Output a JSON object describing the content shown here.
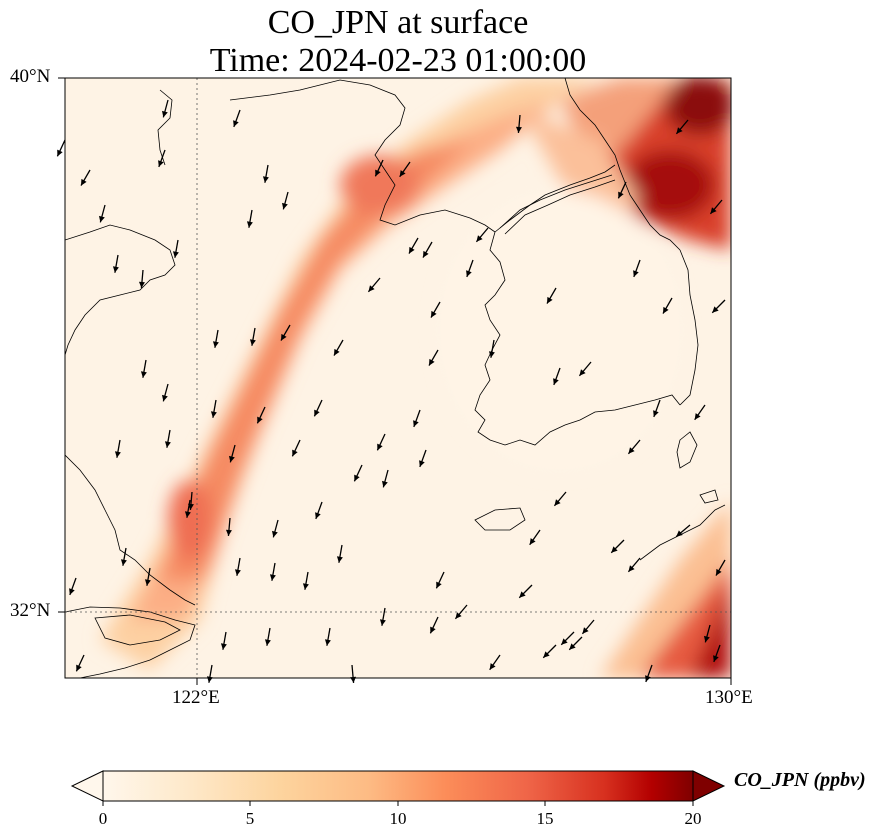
{
  "title_line1": "CO_JPN at surface",
  "title_line2": "Time: 2024-02-23 01:00:00",
  "map": {
    "extent": {
      "lon_min": 119,
      "lon_max": 130,
      "lat_min": 30.8,
      "lat_max": 40
    },
    "lat_ticks": [
      {
        "value": 40,
        "label": "40°N"
      },
      {
        "value": 32,
        "label": "32°N"
      }
    ],
    "lon_ticks": [
      {
        "value": 122,
        "label": "122°E"
      },
      {
        "value": 130,
        "label": "130°E"
      }
    ],
    "gridlines": "dotted at 122°E and 32°N",
    "colormap": "OrRd",
    "layers": [
      "CO_JPN concentration field",
      "coastlines",
      "wind vectors"
    ]
  },
  "colorbar": {
    "label": "CO_JPN (ppbv)",
    "ticks": [
      "0",
      "5",
      "10",
      "15",
      "20"
    ],
    "min": 0,
    "max": 20,
    "extend": "both"
  }
}
